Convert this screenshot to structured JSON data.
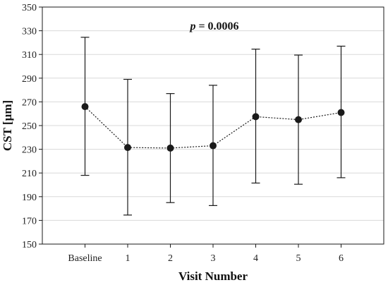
{
  "chart_data": {
    "type": "line",
    "categories": [
      "Baseline",
      "1",
      "2",
      "3",
      "4",
      "5",
      "6"
    ],
    "series": [
      {
        "values": [
          266,
          231.5,
          231,
          233,
          257.5,
          255,
          261
        ],
        "lower": [
          208,
          174.5,
          185,
          182.5,
          201.5,
          200.5,
          206
        ],
        "upper": [
          324.5,
          289,
          277,
          284,
          314.5,
          309.5,
          317
        ]
      }
    ],
    "xlabel": "Visit Number",
    "ylabel": "CST [µm]",
    "ylim": [
      150,
      350
    ],
    "yticks": [
      150,
      170,
      190,
      210,
      230,
      250,
      270,
      290,
      310,
      330,
      350
    ],
    "annotation": {
      "prefix": "p",
      "text": " = 0.0006"
    },
    "grid": "horizontal",
    "colors": {
      "marker": "#1a1a1a",
      "line": "#1a1a1a",
      "grid": "#d9d9d9"
    }
  }
}
